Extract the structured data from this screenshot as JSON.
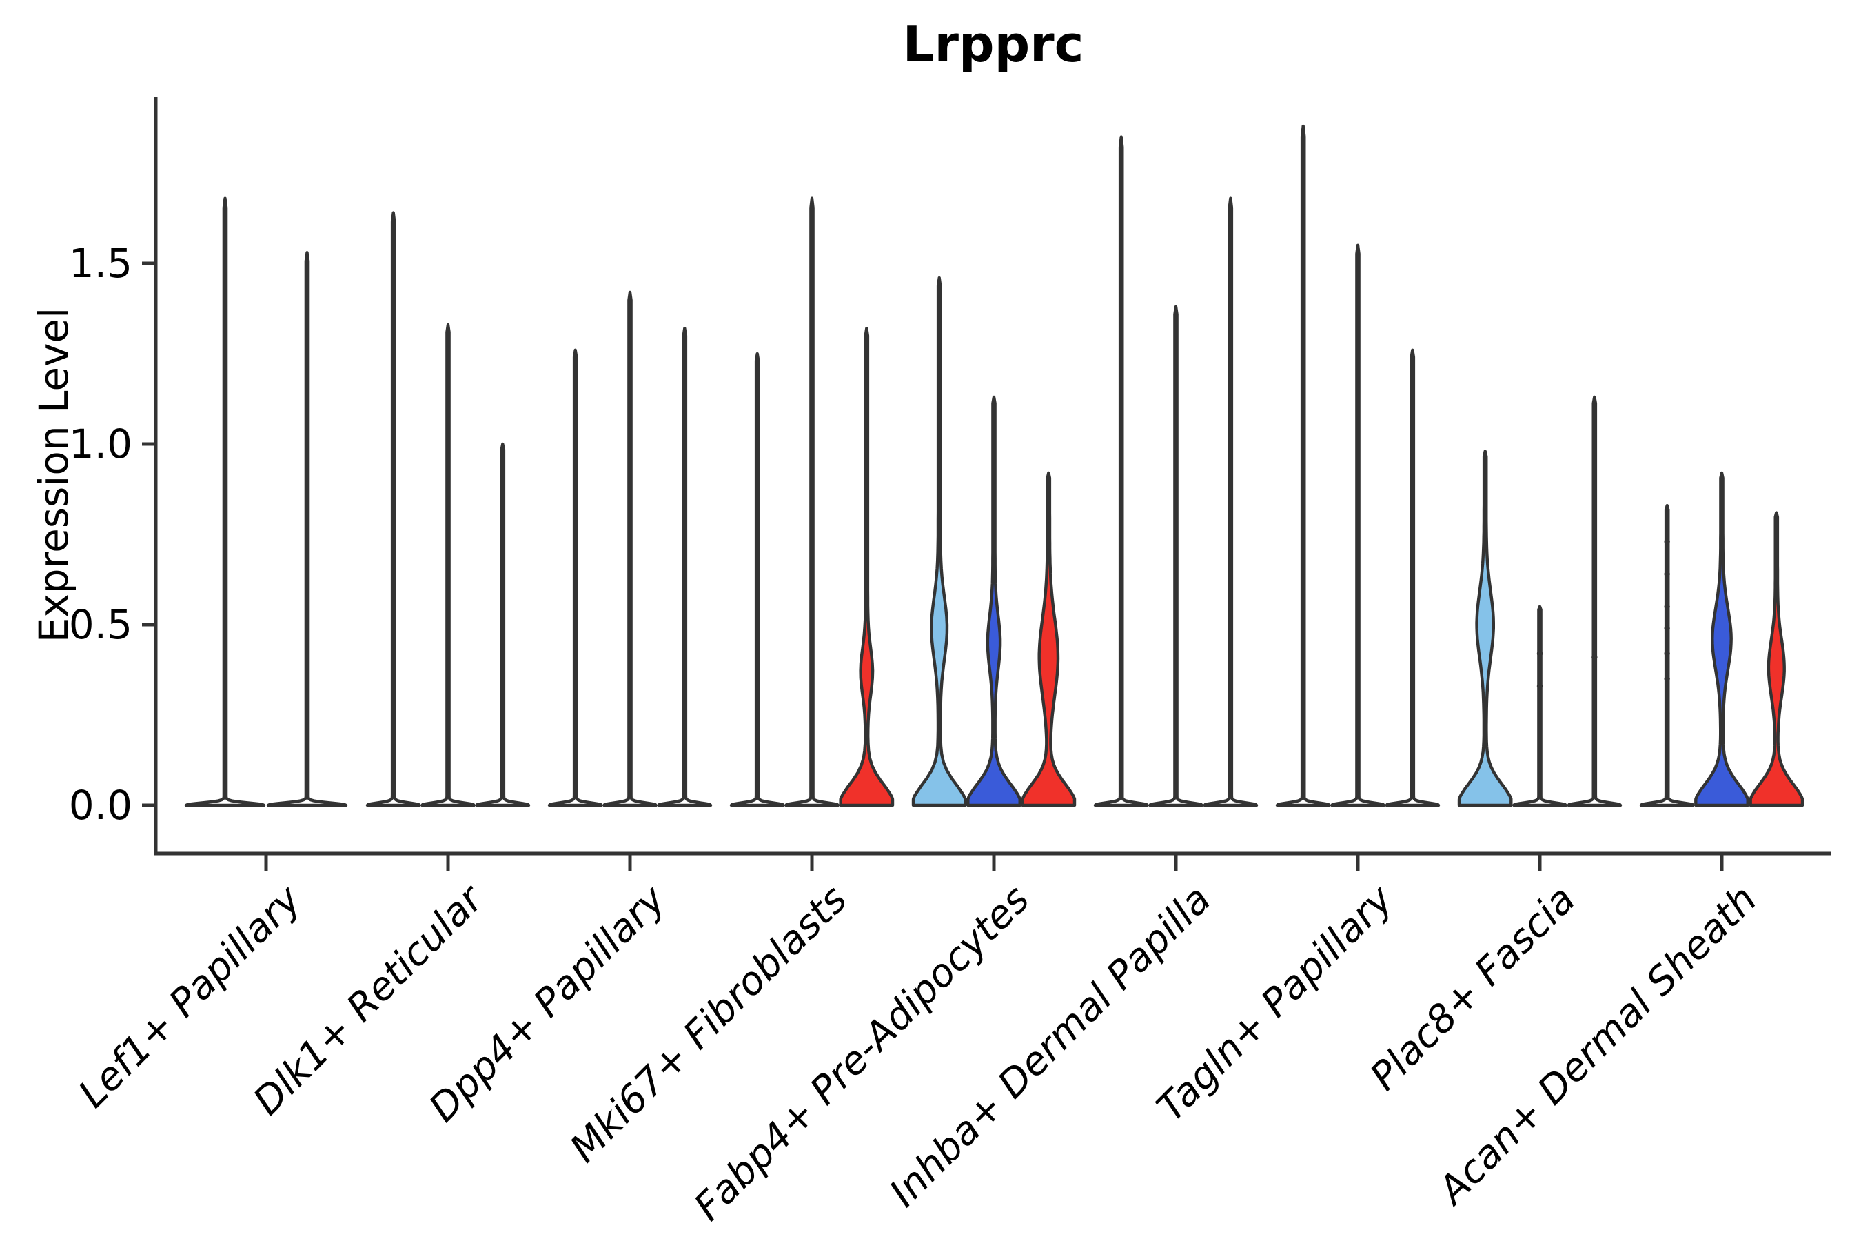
{
  "title": "Lrpprc",
  "y_axis": {
    "label": "Expression Level",
    "tick_labels": [
      "0.0",
      "0.5",
      "1.0",
      "1.5"
    ]
  },
  "colors": {
    "light_blue": "#85C2E9",
    "dark_blue": "#3A5BD9",
    "red": "#F0312A",
    "outline": "#333333",
    "background": "#FFFFFF",
    "text": "#000000"
  },
  "chart_data": {
    "type": "violin",
    "title": "Lrpprc",
    "ylabel": "Expression Level",
    "xlabel": "",
    "ylim": [
      0,
      1.97
    ],
    "yticks": [
      0.0,
      0.5,
      1.0,
      1.5
    ],
    "grid": false,
    "legend_position": "none",
    "categories": [
      "Lef1+ Papillary",
      "Dlk1+ Reticular",
      "Dpp4+ Papillary",
      "Mki67+ Fibroblasts",
      "Fabp4+ Pre-Adipocytes",
      "Inhba+ Dermal Papilla",
      "Tagln+ Papillary",
      "Plac8+ Fascia",
      "Acan+ Dermal Sheath"
    ],
    "groups": [
      {
        "label": "Lef1+ Papillary",
        "violins": [
          {
            "max": 1.68,
            "fill": "none"
          },
          {
            "max": 1.53,
            "fill": "none"
          }
        ]
      },
      {
        "label": "Dlk1+ Reticular",
        "violins": [
          {
            "max": 1.64,
            "fill": "none"
          },
          {
            "max": 1.33,
            "fill": "none"
          },
          {
            "max": 1.0,
            "fill": "none"
          }
        ]
      },
      {
        "label": "Dpp4+ Papillary",
        "violins": [
          {
            "max": 1.26,
            "fill": "none"
          },
          {
            "max": 1.42,
            "fill": "none"
          },
          {
            "max": 1.32,
            "fill": "none"
          }
        ]
      },
      {
        "label": "Mki67+ Fibroblasts",
        "violins": [
          {
            "max": 1.25,
            "fill": "none"
          },
          {
            "max": 1.68,
            "fill": "none"
          },
          {
            "max": 1.32,
            "fill": "red",
            "bulge": {
              "center": 0.37,
              "sigma": 0.09,
              "amp": 0.19
            }
          }
        ]
      },
      {
        "label": "Fabp4+ Pre-Adipocytes",
        "violins": [
          {
            "max": 1.46,
            "fill": "light_blue",
            "bulge": {
              "center": 0.49,
              "sigma": 0.12,
              "amp": 0.26
            }
          },
          {
            "max": 1.13,
            "fill": "dark_blue",
            "bulge": {
              "center": 0.45,
              "sigma": 0.105,
              "amp": 0.2
            }
          },
          {
            "max": 0.92,
            "fill": "red",
            "bulge": {
              "center": 0.41,
              "sigma": 0.15,
              "amp": 0.32
            }
          }
        ]
      },
      {
        "label": "Inhba+ Dermal Papilla",
        "violins": [
          {
            "max": 1.85,
            "fill": "none"
          },
          {
            "max": 1.38,
            "fill": "none"
          },
          {
            "max": 1.68,
            "fill": "none"
          }
        ]
      },
      {
        "label": "Tagln+ Papillary",
        "violins": [
          {
            "max": 1.88,
            "fill": "none"
          },
          {
            "max": 1.55,
            "fill": "none"
          },
          {
            "max": 1.26,
            "fill": "none"
          }
        ]
      },
      {
        "label": "Plac8+ Fascia",
        "violins": [
          {
            "max": 0.98,
            "fill": "light_blue",
            "bulge": {
              "center": 0.5,
              "sigma": 0.13,
              "amp": 0.28
            }
          },
          {
            "max": 0.55,
            "fill": "none",
            "dots": [
              0.42,
              0.33
            ]
          },
          {
            "max": 1.13,
            "fill": "none",
            "dots": [
              0.41
            ]
          }
        ]
      },
      {
        "label": "Acan+ Dermal Sheath",
        "violins": [
          {
            "max": 0.83,
            "fill": "none",
            "dots": [
              0.73,
              0.64,
              0.55,
              0.49,
              0.42,
              0.35
            ]
          },
          {
            "max": 0.92,
            "fill": "dark_blue",
            "bulge": {
              "center": 0.46,
              "sigma": 0.12,
              "amp": 0.32
            }
          },
          {
            "max": 0.81,
            "fill": "red",
            "bulge": {
              "center": 0.38,
              "sigma": 0.11,
              "amp": 0.26
            }
          }
        ]
      }
    ]
  }
}
